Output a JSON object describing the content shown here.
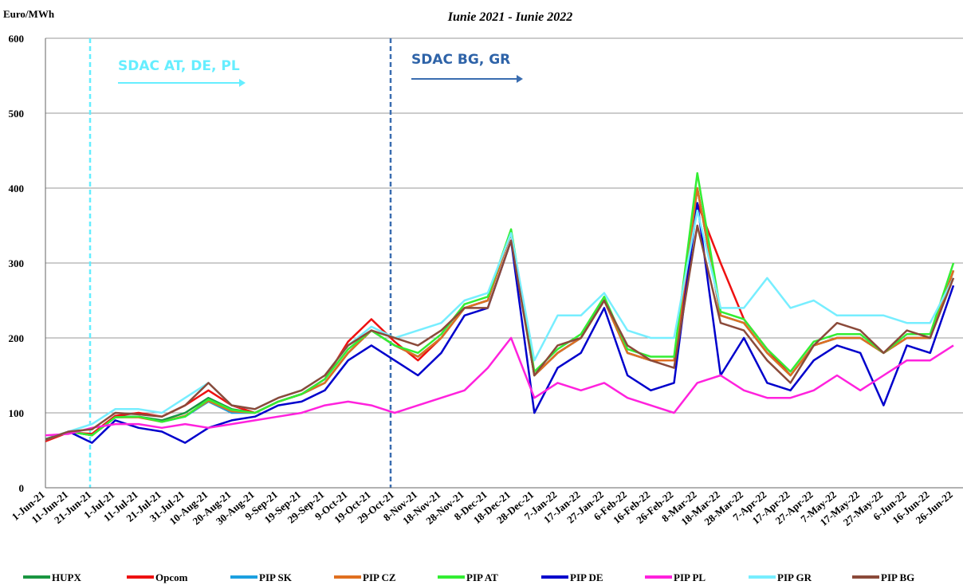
{
  "chart_data": {
    "type": "line",
    "subtitle": "Iunie 2021 - Iunie 2022",
    "y_label": "Euro/MWh",
    "annotations": [
      "SDAC AT, DE, PL",
      "SDAC BG, GR"
    ],
    "categories": [
      "1-Jun-21",
      "11-Jun-21",
      "21-Jun-21",
      "1-Jul-21",
      "11-Jul-21",
      "21-Jul-21",
      "31-Jul-21",
      "10-Aug-21",
      "20-Aug-21",
      "30-Aug-21",
      "9-Sep-21",
      "19-Sep-21",
      "29-Sep-21",
      "9-Oct-21",
      "19-Oct-21",
      "29-Oct-21",
      "8-Nov-21",
      "18-Nov-21",
      "28-Nov-21",
      "8-Dec-21",
      "18-Dec-21",
      "28-Dec-21",
      "7-Jan-22",
      "17-Jan-22",
      "27-Jan-22",
      "6-Feb-22",
      "16-Feb-22",
      "26-Feb-22",
      "8-Mar-22",
      "18-Mar-22",
      "28-Mar-22",
      "7-Apr-22",
      "17-Apr-22",
      "27-Apr-22",
      "7-May-22",
      "17-May-22",
      "27-May-22",
      "6-Jun-22",
      "16-Jun-22",
      "26-Jun-22"
    ],
    "ylim": [
      0,
      600
    ],
    "yticks": [
      0,
      100,
      200,
      300,
      400,
      500,
      600
    ],
    "grid": true,
    "legend": "bottom",
    "series": [
      {
        "name": "HUPX",
        "color": "#1a9641",
        "values": [
          65,
          75,
          70,
          95,
          95,
          90,
          100,
          120,
          105,
          100,
          115,
          125,
          140,
          180,
          210,
          190,
          175,
          200,
          240,
          250,
          340,
          150,
          180,
          200,
          250,
          180,
          170,
          170,
          400,
          230,
          220,
          180,
          150,
          190,
          200,
          200,
          180,
          200,
          200,
          290
        ]
      },
      {
        "name": "Opcom",
        "color": "#ee1111",
        "values": [
          62,
          74,
          72,
          96,
          100,
          95,
          110,
          130,
          110,
          100,
          115,
          125,
          145,
          195,
          225,
          195,
          170,
          200,
          240,
          250,
          340,
          150,
          180,
          200,
          250,
          180,
          170,
          170,
          380,
          300,
          225,
          185,
          150,
          190,
          200,
          200,
          180,
          200,
          200,
          290
        ]
      },
      {
        "name": "PIP SK",
        "color": "#1ca0e0",
        "values": [
          64,
          75,
          70,
          94,
          95,
          88,
          95,
          115,
          100,
          100,
          115,
          125,
          140,
          180,
          210,
          190,
          175,
          200,
          240,
          250,
          340,
          150,
          180,
          200,
          250,
          180,
          170,
          170,
          400,
          230,
          220,
          180,
          150,
          190,
          200,
          200,
          180,
          200,
          200,
          290
        ]
      },
      {
        "name": "PIP CZ",
        "color": "#e07020",
        "values": [
          64,
          75,
          70,
          94,
          94,
          88,
          96,
          116,
          102,
          100,
          115,
          125,
          140,
          180,
          210,
          190,
          175,
          200,
          240,
          250,
          340,
          150,
          180,
          200,
          250,
          180,
          170,
          170,
          400,
          230,
          220,
          180,
          150,
          190,
          200,
          200,
          180,
          200,
          200,
          290
        ]
      },
      {
        "name": "PIP AT",
        "color": "#33ee33",
        "values": [
          64,
          75,
          70,
          94,
          95,
          88,
          95,
          118,
          104,
          100,
          115,
          125,
          145,
          185,
          210,
          190,
          180,
          205,
          245,
          255,
          345,
          155,
          185,
          205,
          255,
          185,
          175,
          175,
          420,
          235,
          225,
          185,
          155,
          195,
          205,
          205,
          180,
          205,
          205,
          300
        ]
      },
      {
        "name": "PIP DE",
        "color": "#0000cc",
        "values": [
          64,
          75,
          60,
          90,
          80,
          75,
          60,
          80,
          90,
          95,
          110,
          115,
          130,
          170,
          190,
          170,
          150,
          180,
          230,
          240,
          330,
          100,
          160,
          180,
          240,
          150,
          130,
          140,
          380,
          150,
          200,
          140,
          130,
          170,
          190,
          180,
          110,
          190,
          180,
          270
        ]
      },
      {
        "name": "PIP PL",
        "color": "#ff22dd",
        "values": [
          70,
          72,
          80,
          85,
          85,
          80,
          85,
          80,
          85,
          90,
          95,
          100,
          110,
          115,
          110,
          100,
          110,
          120,
          130,
          160,
          200,
          120,
          140,
          130,
          140,
          120,
          110,
          100,
          140,
          150,
          130,
          120,
          120,
          130,
          150,
          130,
          150,
          170,
          170,
          190
        ]
      },
      {
        "name": "PIP GR",
        "color": "#77eeff",
        "values": [
          64,
          75,
          85,
          105,
          105,
          100,
          120,
          140,
          110,
          105,
          120,
          130,
          150,
          190,
          215,
          200,
          210,
          220,
          250,
          260,
          340,
          170,
          230,
          230,
          260,
          210,
          200,
          200,
          370,
          240,
          240,
          280,
          240,
          250,
          230,
          230,
          230,
          220,
          220,
          280
        ]
      },
      {
        "name": "PIP BG",
        "color": "#8b4a3a",
        "values": [
          64,
          75,
          78,
          100,
          98,
          95,
          110,
          140,
          110,
          105,
          120,
          130,
          150,
          190,
          210,
          200,
          190,
          210,
          240,
          240,
          330,
          150,
          190,
          200,
          250,
          190,
          170,
          160,
          350,
          220,
          210,
          170,
          140,
          190,
          220,
          210,
          180,
          210,
          200,
          280
        ]
      }
    ]
  }
}
